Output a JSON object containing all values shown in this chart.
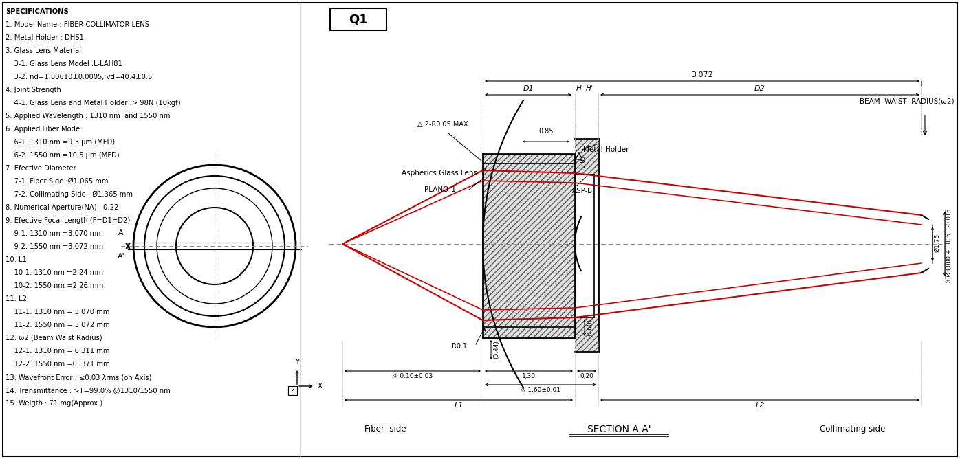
{
  "bg_color": "#ffffff",
  "lc": "#000000",
  "rc": "#cc0000",
  "dc": "#555555",
  "specs": [
    "SPECIFICATIONS",
    "1. Model Name : FIBER COLLIMATOR LENS",
    "2. Metal Holder : DHS1",
    "3. Glass Lens Material",
    "    3-1. Glass Lens Model :L-LAH81",
    "    3-2. nd=1.80610±0.0005, vd=40.4±0.5",
    "4. Joint Strength",
    "    4-1. Glass Lens and Metal Holder :> 98N (10kgf)",
    "5. Applied Wavelength : 1310 nm  and 1550 nm",
    "6. Applied Fiber Mode",
    "    6-1. 1310 nm =9.3 μm (MFD)",
    "    6-2. 1550 nm =10.5 μm (MFD)",
    "7. Efective Diameter",
    "    7-1. Fiber Side :Ø1.065 mm",
    "    7-2. Collimating Side : Ø1.365 mm",
    "8. Numerical Aperture(NA) : 0.22",
    "9. Efective Focal Length (F=D1=D2)",
    "    9-1. 1310 nm =3.070 mm",
    "    9-2. 1550 nm =3.072 mm",
    "10. L1",
    "    10-1. 1310 nm =2.24 mm",
    "    10-2. 1550 nm =2.26 mm",
    "11. L2",
    "    11-1. 1310 nm = 3.070 mm",
    "    11-2. 1550 nm = 3.072 mm",
    "12. ω2 (Beam Waist Radius)",
    "    12-1. 1310 nm = 0.311 mm",
    "    12-2. 1550 nm =0. 371 mm",
    "13. Wavefront Error : ≤0.03 λrms (on Axis)",
    "14. Transmittance : >T=99.0% @1310/1550 nm",
    "15. Weigth : 71 mg(Approx.)"
  ],
  "fig_w": 13.96,
  "fig_h": 6.68,
  "dpi": 100
}
